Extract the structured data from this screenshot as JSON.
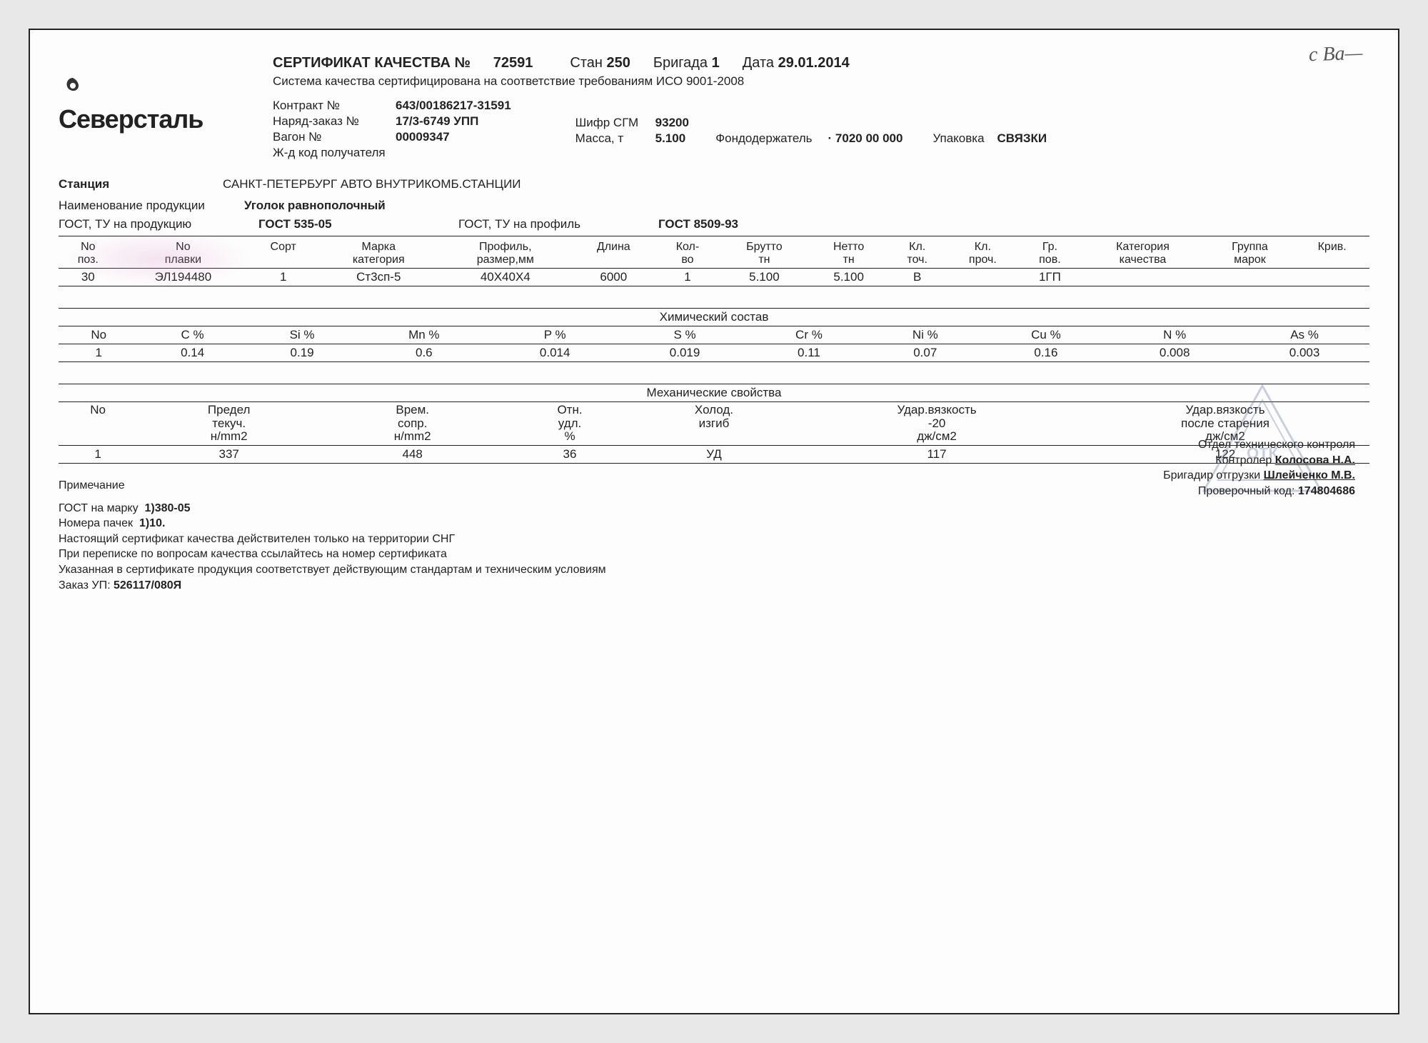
{
  "handwritten_note": "c Ba—",
  "logo": "Северсталь",
  "title": {
    "label": "СЕРТИФИКАТ КАЧЕСТВА №",
    "number": "72591",
    "stan_label": "Стан",
    "stan": "250",
    "brigada_label": "Бригада",
    "brigada": "1",
    "date_label": "Дата",
    "date": "29.01.2014"
  },
  "subtitle": "Система качества сертифицирована на соответствие требованиям ИСО 9001-2008",
  "contract": {
    "contract_label": "Контракт №",
    "contract": "643/00186217-31591",
    "order_label": "Наряд-заказ №",
    "order": "17/3-6749  УПП",
    "wagon_label": "Вагон №",
    "wagon": "00009347",
    "railcode_label": "Ж-д код получателя",
    "railcode": ""
  },
  "shipment": {
    "shifr_label": "Шифр СГМ",
    "shifr": "93200",
    "mass_label": "Масса, т",
    "mass": "5.100",
    "fond_label": "Фондодержатель",
    "fond": "· 7020 00 000",
    "pack_label": "Упаковка",
    "pack": "СВЯЗКИ"
  },
  "station_label": "Станция",
  "station": "САНКТ-ПЕТЕРБУРГ АВТО ВНУТРИКОМБ.СТАНЦИИ",
  "product_label": "Наименование продукции",
  "product": "Уголок равнополочный",
  "gost_row": {
    "gost_prod_label": "ГОСТ, ТУ на продукцию",
    "gost_prod": "ГОСТ 535-05",
    "gost_prof_label": "ГОСТ, ТУ на профиль",
    "gost_prof": "ГОСТ 8509-93"
  },
  "table1": {
    "headers": [
      "No поз.",
      "No плавки",
      "Сорт",
      "Марка категория",
      "Профиль, размер,мм",
      "Длина",
      "Кол-во",
      "Брутто тн",
      "Нетто тн",
      "Кл. точ.",
      "Кл. проч.",
      "Гр. пов.",
      "Категория качества",
      "Группа марок",
      "Крив."
    ],
    "row": [
      "30",
      "ЭЛ194480",
      "1",
      "Ст3сп-5",
      "40Х40Х4",
      "6000",
      "1",
      "5.100",
      "5.100",
      "В",
      "",
      "1ГП",
      "",
      "",
      ""
    ]
  },
  "chem_title": "Химический состав",
  "chem": {
    "headers": [
      "No",
      "C %",
      "Si %",
      "Mn %",
      "P %",
      "S %",
      "Cr %",
      "Ni %",
      "Cu %",
      "N %",
      "As %"
    ],
    "row": [
      "1",
      "0.14",
      "0.19",
      "0.6",
      "0.014",
      "0.019",
      "0.11",
      "0.07",
      "0.16",
      "0.008",
      "0.003"
    ]
  },
  "mech_title": "Механические свойства",
  "mech": {
    "headers": [
      "No",
      "Предел текуч. н/mm2",
      "Врем. сопр. н/mm2",
      "Отн. удл. %",
      "Холод. изгиб",
      "Удар.вязкость -20 дж/см2",
      "Удар.вязкость после старения дж/см2"
    ],
    "row": [
      "1",
      "337",
      "448",
      "36",
      "УД",
      "117",
      "122"
    ]
  },
  "notes": {
    "heading": "Примечание",
    "gost_mark_label": "ГОСТ на марку",
    "gost_mark": "1)380-05",
    "packs_label": "Номера пачек",
    "packs": "1)10.",
    "line1": "Настоящий сертификат качества действителен только на территории СНГ",
    "line2": "При переписке по вопросам качества ссылайтесь на номер сертификата",
    "line3": "Указанная в сертификате продукция соответствует действующим стандартам и техническим условиям",
    "order_code_label": "Заказ УП:",
    "order_code": "526117/080Я"
  },
  "sign": {
    "dept": "Отдел технического контроля",
    "controller_label": "Контролер",
    "controller": "Колосова Н.А.",
    "brigadir_label": "Бригадир отгрузки",
    "brigadir": "Шлейченко М.В.",
    "check_label": "Проверочный код:",
    "check": "174804686"
  },
  "colors": {
    "text": "#222222",
    "border": "#222222",
    "bg": "#fdfdfd",
    "stamp": "#6a7aa8"
  }
}
